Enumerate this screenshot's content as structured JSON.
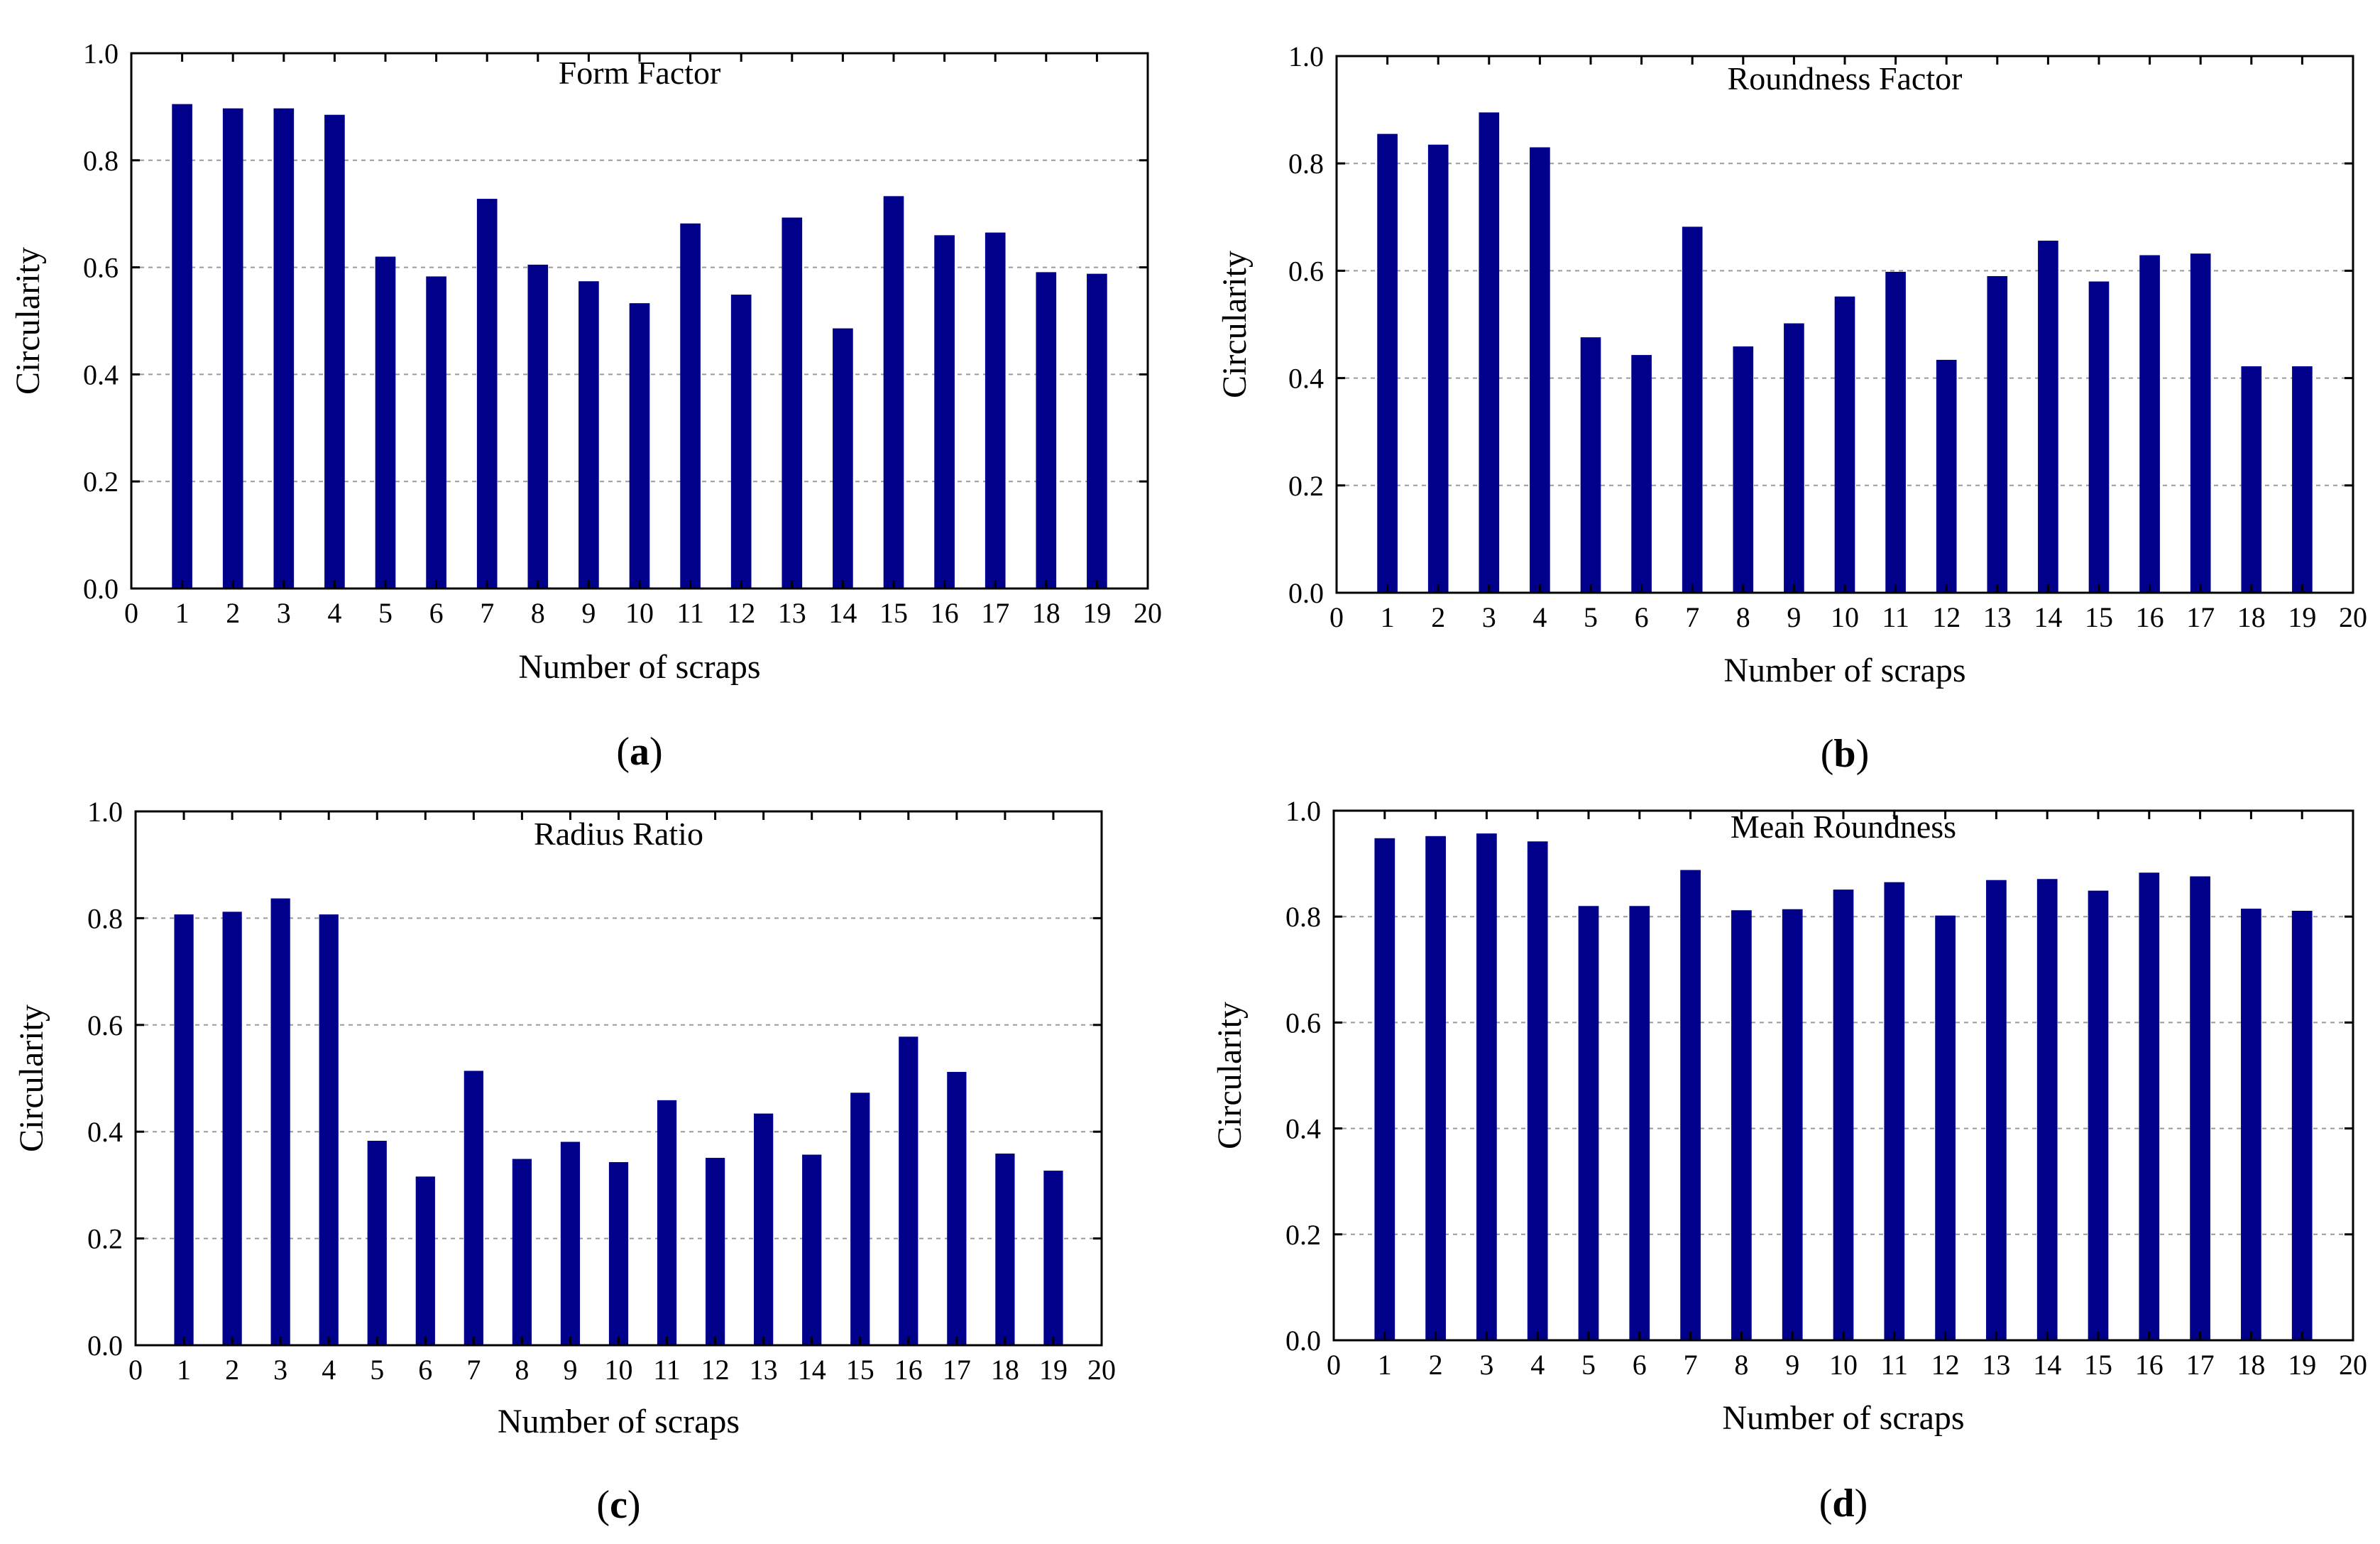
{
  "figure": {
    "bar_color": "#00008b",
    "grid_color": "#9a9a9a",
    "panels": [
      {
        "letter": "a"
      },
      {
        "letter": "b"
      },
      {
        "letter": "c"
      },
      {
        "letter": "d"
      }
    ]
  },
  "chart_data": [
    {
      "type": "bar",
      "panel": "a",
      "title": "Form Factor",
      "xlabel": "Number of scraps",
      "ylabel": "Circularity",
      "categories": [
        1,
        2,
        3,
        4,
        5,
        6,
        7,
        8,
        9,
        10,
        11,
        12,
        13,
        14,
        15,
        16,
        17,
        18,
        19
      ],
      "values": [
        0.905,
        0.897,
        0.897,
        0.885,
        0.62,
        0.583,
        0.728,
        0.605,
        0.574,
        0.533,
        0.682,
        0.549,
        0.693,
        0.486,
        0.733,
        0.66,
        0.665,
        0.591,
        0.588
      ],
      "xlim": [
        0,
        20
      ],
      "ylim": [
        0,
        1.0
      ],
      "xticks": [
        "0",
        "1",
        "2",
        "3",
        "4",
        "5",
        "6",
        "7",
        "8",
        "9",
        "10",
        "11",
        "12",
        "13",
        "14",
        "15",
        "16",
        "17",
        "18",
        "19",
        "20"
      ],
      "yticks": [
        "0.0",
        "0.2",
        "0.4",
        "0.6",
        "0.8",
        "1.0"
      ],
      "grid": "horizontal dashed"
    },
    {
      "type": "bar",
      "panel": "b",
      "title": "Roundness Factor",
      "xlabel": "Number of scraps",
      "ylabel": "Circularity",
      "categories": [
        1,
        2,
        3,
        4,
        5,
        6,
        7,
        8,
        9,
        10,
        11,
        12,
        13,
        14,
        15,
        16,
        17,
        18,
        19
      ],
      "values": [
        0.855,
        0.835,
        0.895,
        0.83,
        0.476,
        0.443,
        0.682,
        0.459,
        0.502,
        0.552,
        0.598,
        0.434,
        0.59,
        0.656,
        0.58,
        0.629,
        0.632,
        0.422,
        0.422
      ],
      "xlim": [
        0,
        20
      ],
      "ylim": [
        0,
        1.0
      ],
      "xticks": [
        "0",
        "1",
        "2",
        "3",
        "4",
        "5",
        "6",
        "7",
        "8",
        "9",
        "10",
        "11",
        "12",
        "13",
        "14",
        "15",
        "16",
        "17",
        "18",
        "19",
        "20"
      ],
      "yticks": [
        "0.0",
        "0.2",
        "0.4",
        "0.6",
        "0.8",
        "1.0"
      ],
      "grid": "horizontal dashed"
    },
    {
      "type": "bar",
      "panel": "c",
      "title": "Radius Ratio",
      "xlabel": "Number of scraps",
      "ylabel": "Circularity",
      "categories": [
        1,
        2,
        3,
        4,
        5,
        6,
        7,
        8,
        9,
        10,
        11,
        12,
        13,
        14,
        15,
        16,
        17,
        18,
        19
      ],
      "values": [
        0.807,
        0.812,
        0.837,
        0.807,
        0.383,
        0.316,
        0.514,
        0.349,
        0.381,
        0.343,
        0.459,
        0.351,
        0.434,
        0.357,
        0.473,
        0.578,
        0.512,
        0.359,
        0.327
      ],
      "xlim": [
        0,
        20
      ],
      "ylim": [
        0,
        1.0
      ],
      "xticks": [
        "0",
        "1",
        "2",
        "3",
        "4",
        "5",
        "6",
        "7",
        "8",
        "9",
        "10",
        "11",
        "12",
        "13",
        "14",
        "15",
        "16",
        "17",
        "18",
        "19",
        "20"
      ],
      "yticks": [
        "0.0",
        "0.2",
        "0.4",
        "0.6",
        "0.8",
        "1.0"
      ],
      "grid": "horizontal dashed"
    },
    {
      "type": "bar",
      "panel": "d",
      "title": "Mean Roundness",
      "xlabel": "Number of scraps",
      "ylabel": "Circularity",
      "categories": [
        1,
        2,
        3,
        4,
        5,
        6,
        7,
        8,
        9,
        10,
        11,
        12,
        13,
        14,
        15,
        16,
        17,
        18,
        19
      ],
      "values": [
        0.948,
        0.952,
        0.957,
        0.942,
        0.82,
        0.82,
        0.888,
        0.812,
        0.814,
        0.851,
        0.865,
        0.802,
        0.869,
        0.871,
        0.849,
        0.883,
        0.876,
        0.815,
        0.811
      ],
      "xlim": [
        0,
        20
      ],
      "ylim": [
        0,
        1.0
      ],
      "xticks": [
        "0",
        "1",
        "2",
        "3",
        "4",
        "5",
        "6",
        "7",
        "8",
        "9",
        "10",
        "11",
        "12",
        "13",
        "14",
        "15",
        "16",
        "17",
        "18",
        "19",
        "20"
      ],
      "yticks": [
        "0.0",
        "0.2",
        "0.4",
        "0.6",
        "0.8",
        "1.0"
      ],
      "grid": "horizontal dashed"
    }
  ]
}
